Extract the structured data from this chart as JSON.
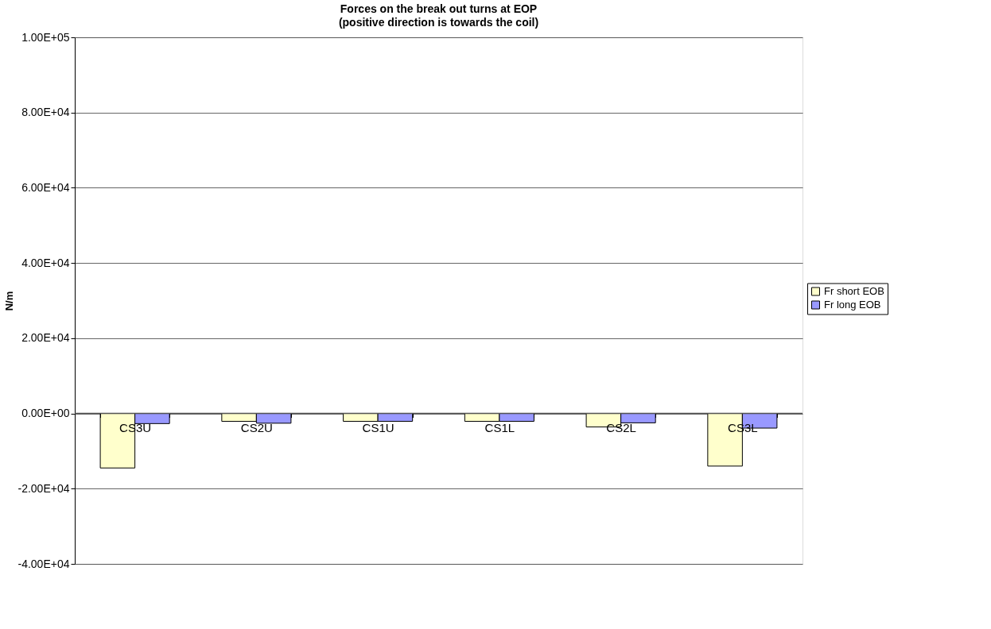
{
  "chart_data": {
    "type": "bar",
    "title": "Forces on the break out turns at EOP",
    "subtitle": "(positive direction is towards the coil)",
    "ylabel": "N/m",
    "categories": [
      "CS3U",
      "CS2U",
      "CS1U",
      "CS1L",
      "CS2L",
      "CS3L"
    ],
    "series": [
      {
        "name": "Fr short EOB",
        "color": "#ffffcc",
        "values": [
          -14500,
          -2100,
          -2100,
          -2100,
          -3600,
          -14000
        ]
      },
      {
        "name": "Fr long EOB",
        "color": "#9999ff",
        "values": [
          -2700,
          -2600,
          -2100,
          -2100,
          -2500,
          -3900
        ]
      }
    ],
    "ylim": [
      -40000,
      100000
    ],
    "yticks": [
      {
        "value": -40000,
        "label": "-4.00E+04"
      },
      {
        "value": -20000,
        "label": "-2.00E+04"
      },
      {
        "value": 0,
        "label": "0.00E+00"
      },
      {
        "value": 20000,
        "label": "2.00E+04"
      },
      {
        "value": 40000,
        "label": "4.00E+04"
      },
      {
        "value": 60000,
        "label": "6.00E+04"
      },
      {
        "value": 80000,
        "label": "8.00E+04"
      },
      {
        "value": 100000,
        "label": "1.00E+05"
      }
    ],
    "grid": "y",
    "legend": "right"
  }
}
